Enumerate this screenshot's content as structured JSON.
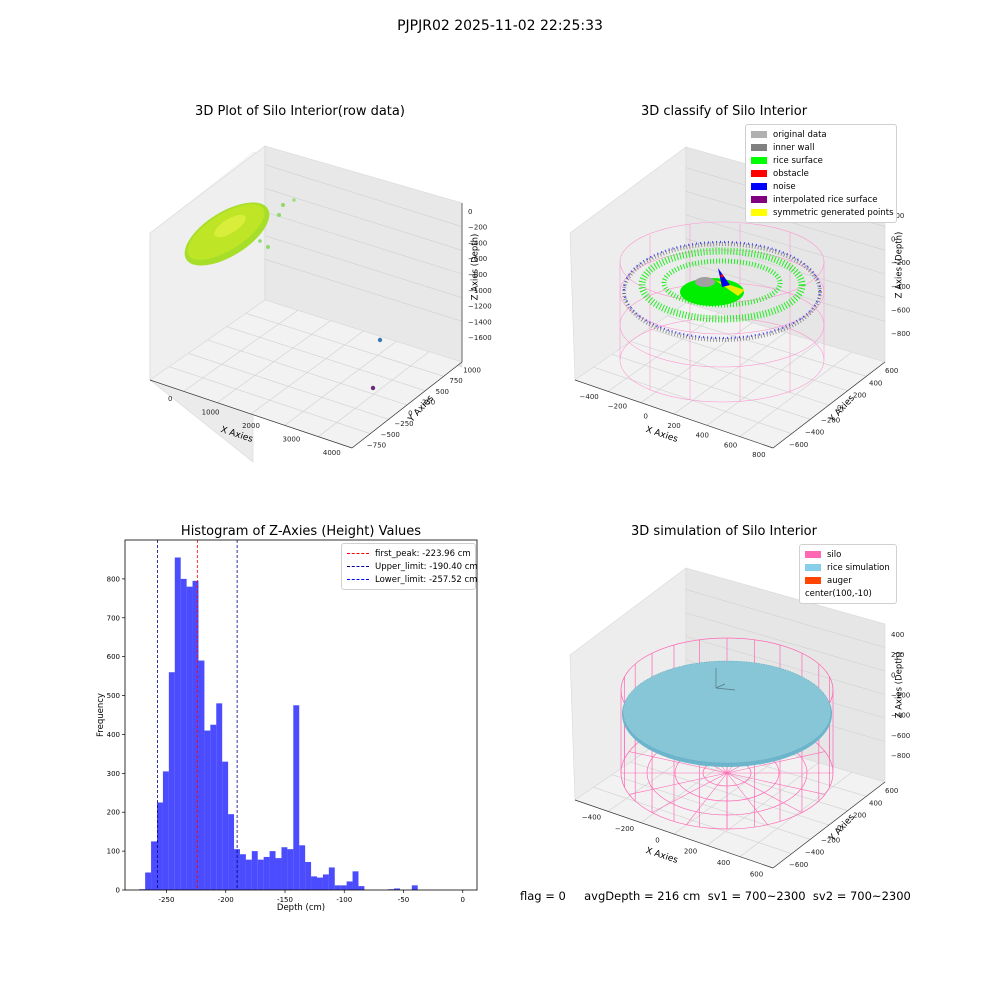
{
  "suptitle": "PJPJR02 2025-11-02 22:25:33",
  "bottom_text": "flag = 0     avgDepth = 216 cm  sv1 = 700~2300  sv2 = 700~2300",
  "colors": {
    "rice": "#b5e61d",
    "pink": "#ff69b4",
    "lightblue": "#87ceeb",
    "auger": "#ff4500",
    "hist": "#0000ff",
    "peak_line": "#ff0000",
    "limit_line": "#00008b"
  },
  "chart_data": [
    {
      "type": "scatter",
      "title": "3D Plot of Silo Interior(row data)",
      "xlabel": "X Axies",
      "ylabel": "Y Axies",
      "zlabel": "Z Axies (Depth)",
      "x_ticks": [
        "0",
        "1000",
        "2000",
        "3000",
        "4000"
      ],
      "y_ticks": [
        "−750",
        "−500",
        "−250",
        "0",
        "250",
        "500",
        "750",
        "1000"
      ],
      "z_ticks": [
        "0",
        "−200",
        "−400",
        "−600",
        "−800",
        "−1000",
        "−1200",
        "−1400",
        "−1600"
      ],
      "outliers": [
        {
          "x": 4000,
          "y": 600,
          "z": -1500
        },
        {
          "x": 4100,
          "y": -400,
          "z": -1550
        }
      ]
    },
    {
      "type": "scatter",
      "title": "3D classify of Silo Interior",
      "xlabel": "X Axies",
      "ylabel": "Y Axies",
      "zlabel": "Z Axies (Depth)",
      "x_ticks": [
        "−400",
        "−200",
        "0",
        "200",
        "400",
        "600",
        "800"
      ],
      "y_ticks": [
        "−600",
        "−400",
        "−200",
        "0",
        "200",
        "400",
        "600"
      ],
      "z_ticks": [
        "200",
        "0",
        "−200",
        "−400",
        "−600",
        "−800"
      ],
      "legend": [
        {
          "label": "original data",
          "color": "#b0b0b0"
        },
        {
          "label": "inner wall",
          "color": "#808080"
        },
        {
          "label": "rice surface",
          "color": "#00ff00"
        },
        {
          "label": "obstacle",
          "color": "#ff0000"
        },
        {
          "label": "noise",
          "color": "#0000ff"
        },
        {
          "label": "interpolated rice surface",
          "color": "#800080"
        },
        {
          "label": "symmetric generated points",
          "color": "#ffff00"
        }
      ]
    },
    {
      "type": "bar",
      "title": "Histogram of Z-Axies (Height) Values",
      "xlabel": "Depth (cm)",
      "ylabel": "Frequency",
      "xlim": [
        -285,
        12
      ],
      "ylim": [
        0,
        900
      ],
      "x_ticks": [
        -250,
        -200,
        -150,
        -100,
        -50,
        0
      ],
      "y_ticks": [
        0,
        100,
        200,
        300,
        400,
        500,
        600,
        700,
        800
      ],
      "bin_start": -273,
      "bin_width": 5,
      "values": [
        2,
        45,
        125,
        225,
        305,
        560,
        855,
        800,
        780,
        795,
        590,
        410,
        425,
        480,
        330,
        195,
        105,
        92,
        78,
        100,
        78,
        85,
        100,
        82,
        110,
        105,
        475,
        115,
        72,
        35,
        32,
        40,
        58,
        12,
        12,
        22,
        48,
        10,
        0,
        0,
        0,
        0,
        2,
        4,
        0,
        0,
        12
      ],
      "lines": [
        {
          "label": "first_peak: -223.96 cm",
          "value": -223.96,
          "color": "#ff0000"
        },
        {
          "label": "Upper_limit: -190.40 cm",
          "value": -190.4,
          "color": "#00008b"
        },
        {
          "label": "Lower_limit: -257.52 cm",
          "value": -257.52,
          "color": "#00008b"
        }
      ]
    },
    {
      "type": "area",
      "title": "3D simulation of Silo Interior",
      "xlabel": "X Axies",
      "ylabel": "Y Axies",
      "zlabel": "Z Axies (Depth)",
      "x_ticks": [
        "−400",
        "−200",
        "0",
        "200",
        "400",
        "600"
      ],
      "y_ticks": [
        "−600",
        "−400",
        "−200",
        "0",
        "200",
        "400",
        "600"
      ],
      "z_ticks": [
        "400",
        "200",
        "0",
        "−200",
        "−400",
        "−600",
        "−800"
      ],
      "legend": [
        {
          "label": "silo",
          "color": "#ff69b4"
        },
        {
          "label": "rice simulation",
          "color": "#87ceeb"
        },
        {
          "label": "auger",
          "color": "#ff4500"
        },
        {
          "label": "center(100,-10)",
          "color": ""
        }
      ]
    }
  ]
}
